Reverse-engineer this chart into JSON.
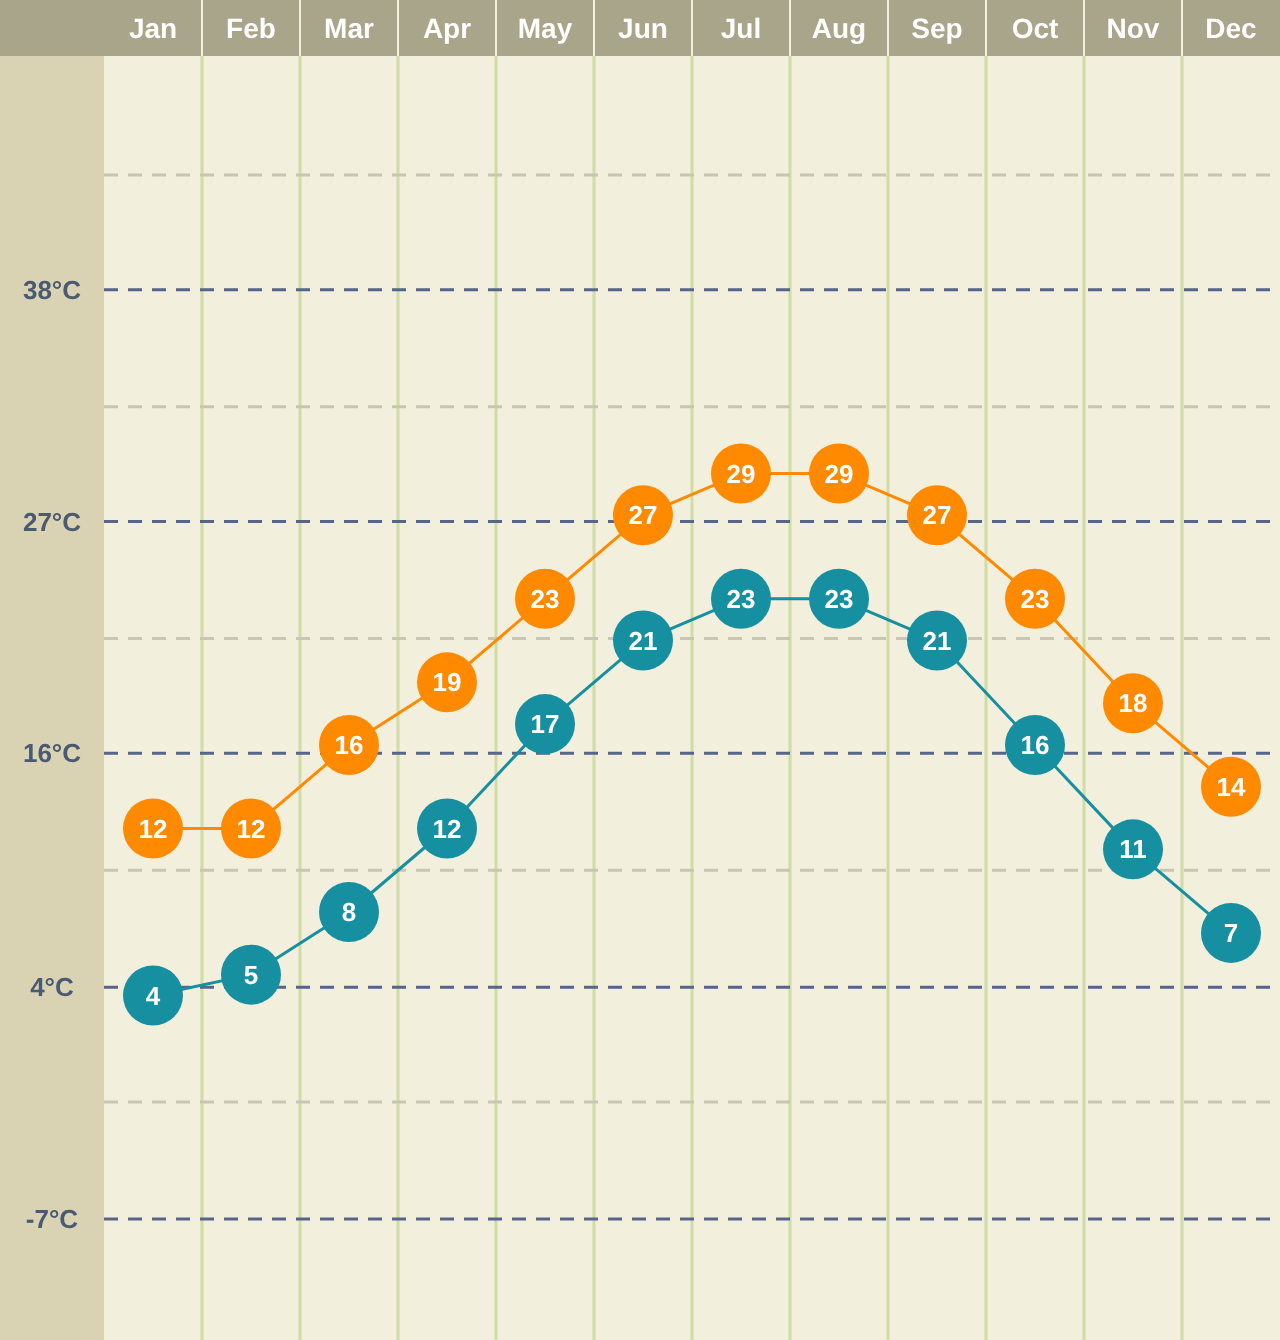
{
  "chart_data": {
    "type": "line",
    "categories": [
      "Jan",
      "Feb",
      "Mar",
      "Apr",
      "May",
      "Jun",
      "Jul",
      "Aug",
      "Sep",
      "Oct",
      "Nov",
      "Dec"
    ],
    "series": [
      {
        "color": "#ff8a00",
        "values": [
          12,
          12,
          16,
          19,
          23,
          27,
          29,
          29,
          27,
          23,
          18,
          14
        ]
      },
      {
        "color": "#168fa0",
        "values": [
          4,
          5,
          8,
          12,
          17,
          21,
          23,
          23,
          21,
          16,
          11,
          7
        ]
      }
    ],
    "ylim": [
      -12.5,
      49
    ],
    "yticks": [
      {
        "value": 43.3,
        "label": null
      },
      {
        "value": 37.8,
        "label": "38°C"
      },
      {
        "value": 32.2,
        "label": null
      },
      {
        "value": 26.7,
        "label": "27°C"
      },
      {
        "value": 21.1,
        "label": null
      },
      {
        "value": 15.6,
        "label": "16°C"
      },
      {
        "value": 10,
        "label": null
      },
      {
        "value": 4.4,
        "label": "4°C"
      },
      {
        "value": -1.1,
        "label": null
      },
      {
        "value": -6.7,
        "label": "-7°C"
      }
    ],
    "grid": true,
    "marker": "circle",
    "data_labels": true
  }
}
